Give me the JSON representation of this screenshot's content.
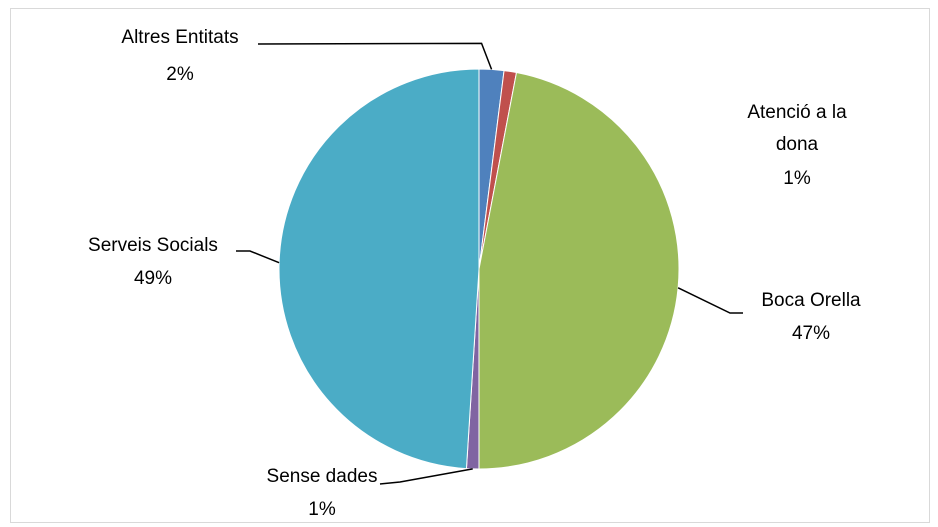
{
  "chart_data": {
    "type": "pie",
    "title": "",
    "slices": [
      {
        "label": "Altres Entitats",
        "value": 2,
        "value_label": "2%",
        "color": "#4F81BD"
      },
      {
        "label": "Atenció a la dona",
        "value": 1,
        "value_label": "1%",
        "color": "#C0504D"
      },
      {
        "label": "Boca Orella",
        "value": 47,
        "value_label": "47%",
        "color": "#9BBB59"
      },
      {
        "label": "Sense dades",
        "value": 1,
        "value_label": "1%",
        "color": "#8064A2"
      },
      {
        "label": "Serveis Socials",
        "value": 49,
        "value_label": "49%",
        "color": "#4BACC6"
      }
    ],
    "legend": "none",
    "label_lines": [
      "Atenció a la",
      "dona"
    ]
  }
}
